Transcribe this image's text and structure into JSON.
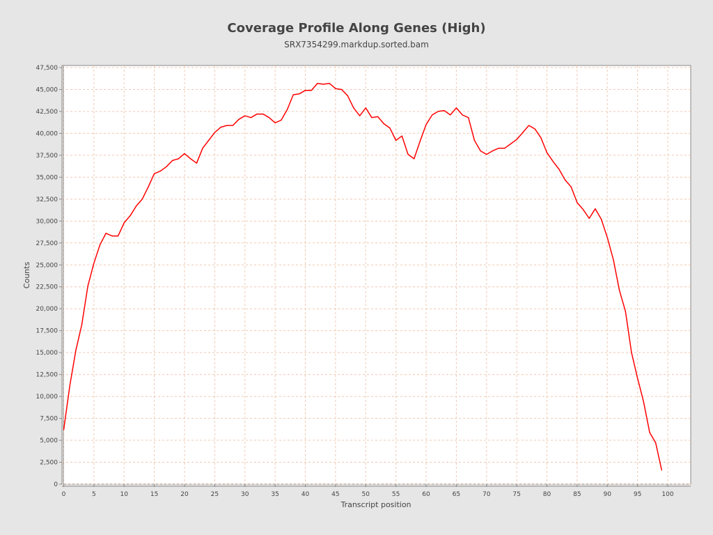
{
  "chart_data": {
    "type": "line",
    "title": "Coverage Profile Along Genes (High)",
    "subtitle": "SRX7354299.markdup.sorted.bam",
    "xlabel": "Transcript position",
    "ylabel": "Counts",
    "xlim": [
      0,
      104
    ],
    "ylim": [
      0,
      48000
    ],
    "x_ticks": [
      0,
      5,
      10,
      15,
      20,
      25,
      30,
      35,
      40,
      45,
      50,
      55,
      60,
      65,
      70,
      75,
      80,
      85,
      90,
      95,
      100
    ],
    "y_ticks": [
      0,
      2500,
      5000,
      7500,
      10000,
      12500,
      15000,
      17500,
      20000,
      22500,
      25000,
      27500,
      30000,
      32500,
      35000,
      37500,
      40000,
      42500,
      45000,
      47500
    ],
    "y_tick_labels": [
      "0",
      "2,500",
      "5,000",
      "7,500",
      "10,000",
      "12,500",
      "15,000",
      "17,500",
      "20,000",
      "22,500",
      "25,000",
      "27,500",
      "30,000",
      "32,500",
      "35,000",
      "37,500",
      "40,000",
      "42,500",
      "45,000",
      "47,500"
    ],
    "grid": true,
    "colors": {
      "line": "#ff0000",
      "grid": "#f0c8b0",
      "plot_bg": "#ffffff",
      "page_bg": "#e6e6e6"
    },
    "series": [
      {
        "x": [
          0,
          1,
          2,
          3,
          4,
          5,
          6,
          7,
          8,
          9,
          10,
          11,
          12,
          13,
          14,
          15,
          16,
          17,
          18,
          19,
          20,
          21,
          22,
          23,
          24,
          25,
          26,
          27,
          28,
          29,
          30,
          31,
          32,
          33,
          34,
          35,
          36,
          37,
          38,
          39,
          40,
          41,
          42,
          43,
          44,
          45,
          46,
          47,
          48,
          49,
          50,
          51,
          52,
          53,
          54,
          55,
          56,
          57,
          58,
          59,
          60,
          61,
          62,
          63,
          64,
          65,
          66,
          67,
          68,
          69,
          70,
          71,
          72,
          73,
          74,
          75,
          76,
          77,
          78,
          79,
          80,
          81,
          82,
          83,
          84,
          85,
          86,
          87,
          88,
          89,
          90,
          91,
          92,
          93,
          94,
          95,
          96,
          97,
          98,
          99
        ],
        "values": [
          6200,
          11200,
          15200,
          18200,
          22600,
          25200,
          27300,
          28600,
          28300,
          28300,
          29800,
          30600,
          31700,
          32500,
          33900,
          35400,
          35700,
          36200,
          36900,
          37100,
          37700,
          37100,
          36600,
          38300,
          39200,
          40100,
          40700,
          40900,
          40900,
          41600,
          42000,
          41800,
          42200,
          42200,
          41800,
          41200,
          41500,
          42700,
          44400,
          44500,
          44900,
          44900,
          45700,
          45600,
          45700,
          45100,
          45000,
          44300,
          42900,
          42000,
          42900,
          41800,
          41900,
          41100,
          40600,
          39200,
          39700,
          37600,
          37100,
          39100,
          41000,
          42100,
          42500,
          42600,
          42100,
          42900,
          42100,
          41800,
          39200,
          38000,
          37600,
          38000,
          38300,
          38300,
          38800,
          39300,
          40100,
          40900,
          40500,
          39500,
          37800,
          36800,
          35900,
          34700,
          33900,
          32100,
          31300,
          30300,
          31400,
          30200,
          28100,
          25600,
          22100,
          19700,
          15000,
          12100,
          9400,
          5900,
          4700,
          1600
        ]
      }
    ]
  }
}
